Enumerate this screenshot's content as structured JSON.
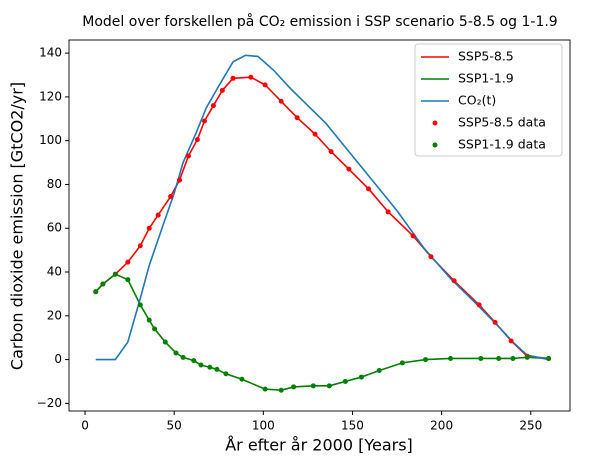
{
  "chart_data": {
    "type": "line",
    "title": "Model over forskellen på CO₂ emission i SSP scenario 5-8.5 og 1-1.9",
    "xlabel": "År efter år 2000 [Years]",
    "ylabel": "Carbon dioxide emission [GtCO2/yr]",
    "xlim": [
      -9,
      272
    ],
    "ylim": [
      -23.5,
      146
    ],
    "xticks": [
      0,
      50,
      100,
      150,
      200,
      250
    ],
    "yticks": [
      {
        "value": -20,
        "label": "−20"
      },
      0,
      20,
      40,
      60,
      80,
      100,
      120,
      140
    ],
    "legend": "upper right",
    "series": [
      {
        "name": "SSP5-8.5",
        "color": "#ff0000",
        "style": "line",
        "x": [
          6,
          10,
          17,
          24,
          31,
          36,
          41,
          48,
          53,
          58,
          63,
          67,
          72,
          77,
          83,
          93,
          101,
          110,
          119,
          129,
          138,
          148,
          159,
          170,
          184,
          194,
          207,
          221,
          230,
          239,
          248,
          260
        ],
        "values": [
          31,
          34.5,
          39,
          44.5,
          52,
          60,
          66,
          74.5,
          82,
          93,
          100.5,
          109,
          116,
          123,
          128.5,
          129,
          125.5,
          118,
          110.5,
          103,
          95,
          87,
          78,
          67.5,
          56.5,
          47,
          36,
          25,
          17,
          8.5,
          1.5,
          0.5
        ]
      },
      {
        "name": "SSP1-1.9",
        "color": "#008000",
        "style": "line",
        "x": [
          6,
          10,
          17,
          24,
          31,
          36,
          39,
          45,
          51,
          55,
          61,
          65,
          70,
          74,
          79,
          88,
          101,
          110,
          117,
          128,
          137,
          146,
          155,
          165,
          178,
          191,
          205,
          222,
          232,
          240,
          248,
          260
        ],
        "values": [
          31,
          34.5,
          39,
          36.5,
          25,
          18,
          14,
          8,
          3,
          1,
          -0.5,
          -2.5,
          -3.5,
          -4.5,
          -6.5,
          -9,
          -13.5,
          -14,
          -12.5,
          -12,
          -12,
          -10,
          -8,
          -5,
          -1.5,
          0,
          0.5,
          0.5,
          0.5,
          0.5,
          1,
          0.5
        ]
      },
      {
        "name": "CO₂(t)",
        "color": "#1f77b4",
        "style": "line",
        "x": [
          6,
          17,
          24,
          31,
          36,
          44,
          50,
          55,
          62,
          68,
          75,
          83,
          90,
          97,
          106,
          115,
          135,
          158,
          175,
          190,
          205,
          220,
          232,
          240,
          248,
          260
        ],
        "values": [
          0,
          0,
          8,
          28,
          43,
          62,
          76,
          90,
          103,
          115,
          125,
          136,
          139,
          138.5,
          132,
          124,
          108,
          85,
          68,
          51,
          37,
          25,
          15,
          8,
          2,
          0
        ]
      },
      {
        "name": "SSP5-8.5 data",
        "color": "#ff0000",
        "style": "points",
        "x": [
          6,
          10,
          17,
          24,
          31,
          36,
          41,
          48,
          53,
          58,
          63,
          67,
          72,
          77,
          83,
          93,
          101,
          110,
          119,
          129,
          138,
          148,
          159,
          170,
          184,
          194,
          207,
          221,
          230,
          239,
          248,
          260
        ],
        "values": [
          31,
          34.5,
          39,
          44.5,
          52,
          60,
          66,
          74.5,
          82,
          93,
          100.5,
          109,
          116,
          123,
          128.5,
          129,
          125.5,
          118,
          110.5,
          103,
          95,
          87,
          78,
          67.5,
          56.5,
          47,
          36,
          25,
          17,
          8.5,
          1.5,
          0.5
        ]
      },
      {
        "name": "SSP1-1.9 data",
        "color": "#008000",
        "style": "points",
        "x": [
          6,
          10,
          17,
          24,
          31,
          36,
          39,
          45,
          51,
          55,
          61,
          65,
          70,
          74,
          79,
          88,
          101,
          110,
          117,
          128,
          137,
          146,
          155,
          165,
          178,
          191,
          205,
          222,
          232,
          240,
          248,
          260
        ],
        "values": [
          31,
          34.5,
          39,
          36.5,
          25,
          18,
          14,
          8,
          3,
          1,
          -0.5,
          -2.5,
          -3.5,
          -4.5,
          -6.5,
          -9,
          -13.5,
          -14,
          -12.5,
          -12,
          -12,
          -10,
          -8,
          -5,
          -1.5,
          0,
          0.5,
          0.5,
          0.5,
          0.5,
          1,
          0.5
        ]
      }
    ]
  }
}
